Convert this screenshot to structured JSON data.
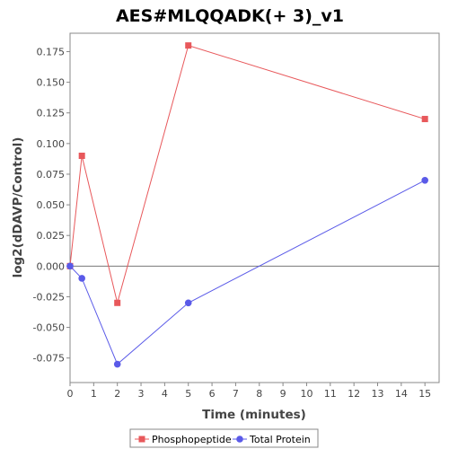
{
  "chart_data": {
    "type": "line",
    "title": "AES#MLQQADK(+ 3)_v1",
    "xlabel": "Time (minutes)",
    "ylabel": "log2(dDAVP/Control)",
    "xlim": [
      0,
      15.6
    ],
    "ylim": [
      -0.095,
      0.19
    ],
    "x_ticks": [
      0,
      1,
      2,
      3,
      4,
      5,
      6,
      7,
      8,
      9,
      10,
      11,
      12,
      13,
      14,
      15
    ],
    "y_ticks": [
      -0.075,
      -0.05,
      -0.025,
      0.0,
      0.025,
      0.05,
      0.075,
      0.1,
      0.125,
      0.15,
      0.175
    ],
    "y_tick_labels": [
      "-0.075",
      "-0.050",
      "-0.025",
      "0.000",
      "0.025",
      "0.050",
      "0.075",
      "0.100",
      "0.125",
      "0.150",
      "0.175"
    ],
    "zero_line": true,
    "grid": false,
    "legend_position": "bottom",
    "series": [
      {
        "name": "Phosphopeptide",
        "color": "#e8585b",
        "marker": "square",
        "x": [
          0,
          0.5,
          2,
          5,
          15
        ],
        "y": [
          0.0,
          0.09,
          -0.03,
          0.18,
          0.12
        ]
      },
      {
        "name": "Total Protein",
        "color": "#5a5ae8",
        "marker": "circle",
        "x": [
          0,
          0.5,
          2,
          5,
          15
        ],
        "y": [
          0.0,
          -0.01,
          -0.08,
          -0.03,
          0.07
        ]
      }
    ]
  }
}
